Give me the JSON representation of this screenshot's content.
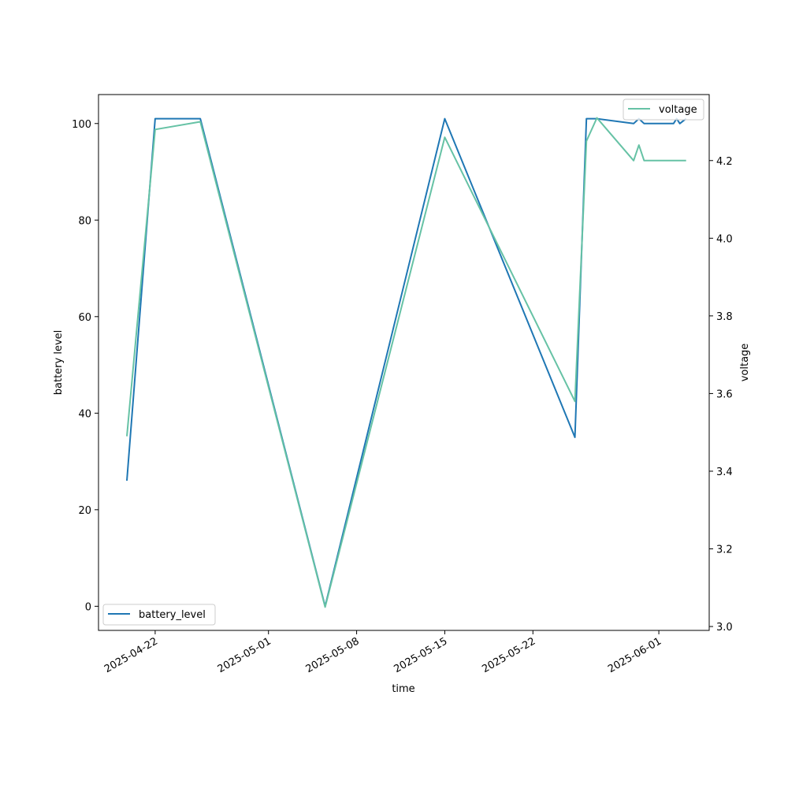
{
  "chart_data": {
    "type": "line",
    "title": "",
    "xlabel": "time",
    "ylabel_left": "battery level",
    "ylabel_right": "voltage",
    "x_ticks": [
      "2025-04-22",
      "2025-05-01",
      "2025-05-08",
      "2025-05-15",
      "2025-05-22",
      "2025-06-01"
    ],
    "y_left_ticks": [
      "0",
      "20",
      "40",
      "60",
      "80",
      "100"
    ],
    "y_right_ticks": [
      "3.0",
      "3.2",
      "3.4",
      "3.6",
      "3.8",
      "4.0",
      "4.2"
    ],
    "y_left_lim": [
      -5,
      106
    ],
    "y_right_lim": [
      2.99,
      4.37
    ],
    "x_lim": [
      "2025-04-17 12:00",
      "2025-06-05 00:00"
    ],
    "series": [
      {
        "name": "battery_level",
        "axis": "left",
        "color": "#1f77b4",
        "legend": "lower-left",
        "points": [
          [
            "2025-04-19 18:00",
            26
          ],
          [
            "2025-04-22 00:00",
            101
          ],
          [
            "2025-04-25 14:00",
            101
          ],
          [
            "2025-05-05 12:00",
            0
          ],
          [
            "2025-05-15 00:00",
            101
          ],
          [
            "2025-05-25 08:00",
            35
          ],
          [
            "2025-05-26 06:00",
            101
          ],
          [
            "2025-05-27 02:00",
            101
          ],
          [
            "2025-05-30 00:00",
            100
          ],
          [
            "2025-05-30 10:00",
            101
          ],
          [
            "2025-05-30 20:00",
            100
          ],
          [
            "2025-06-02 04:00",
            100
          ],
          [
            "2025-06-02 10:00",
            101
          ],
          [
            "2025-06-02 16:00",
            100
          ],
          [
            "2025-06-03 04:00",
            101
          ]
        ]
      },
      {
        "name": "voltage",
        "axis": "right",
        "color": "#66c2a5",
        "legend": "upper-right",
        "points": [
          [
            "2025-04-19 18:00",
            3.49
          ],
          [
            "2025-04-22 00:00",
            4.28
          ],
          [
            "2025-04-25 14:00",
            4.3
          ],
          [
            "2025-05-05 12:00",
            3.05
          ],
          [
            "2025-05-15 00:00",
            4.26
          ],
          [
            "2025-05-25 08:00",
            3.58
          ],
          [
            "2025-05-26 06:00",
            4.25
          ],
          [
            "2025-05-27 02:00",
            4.31
          ],
          [
            "2025-05-30 00:00",
            4.2
          ],
          [
            "2025-05-30 10:00",
            4.24
          ],
          [
            "2025-05-30 20:00",
            4.2
          ],
          [
            "2025-05-31 12:00",
            4.2
          ],
          [
            "2025-06-01 08:00",
            4.2
          ],
          [
            "2025-06-02 04:00",
            4.2
          ],
          [
            "2025-06-02 10:00",
            4.2
          ],
          [
            "2025-06-02 16:00",
            4.2
          ],
          [
            "2025-06-03 04:00",
            4.2
          ]
        ]
      }
    ],
    "grid": false
  }
}
